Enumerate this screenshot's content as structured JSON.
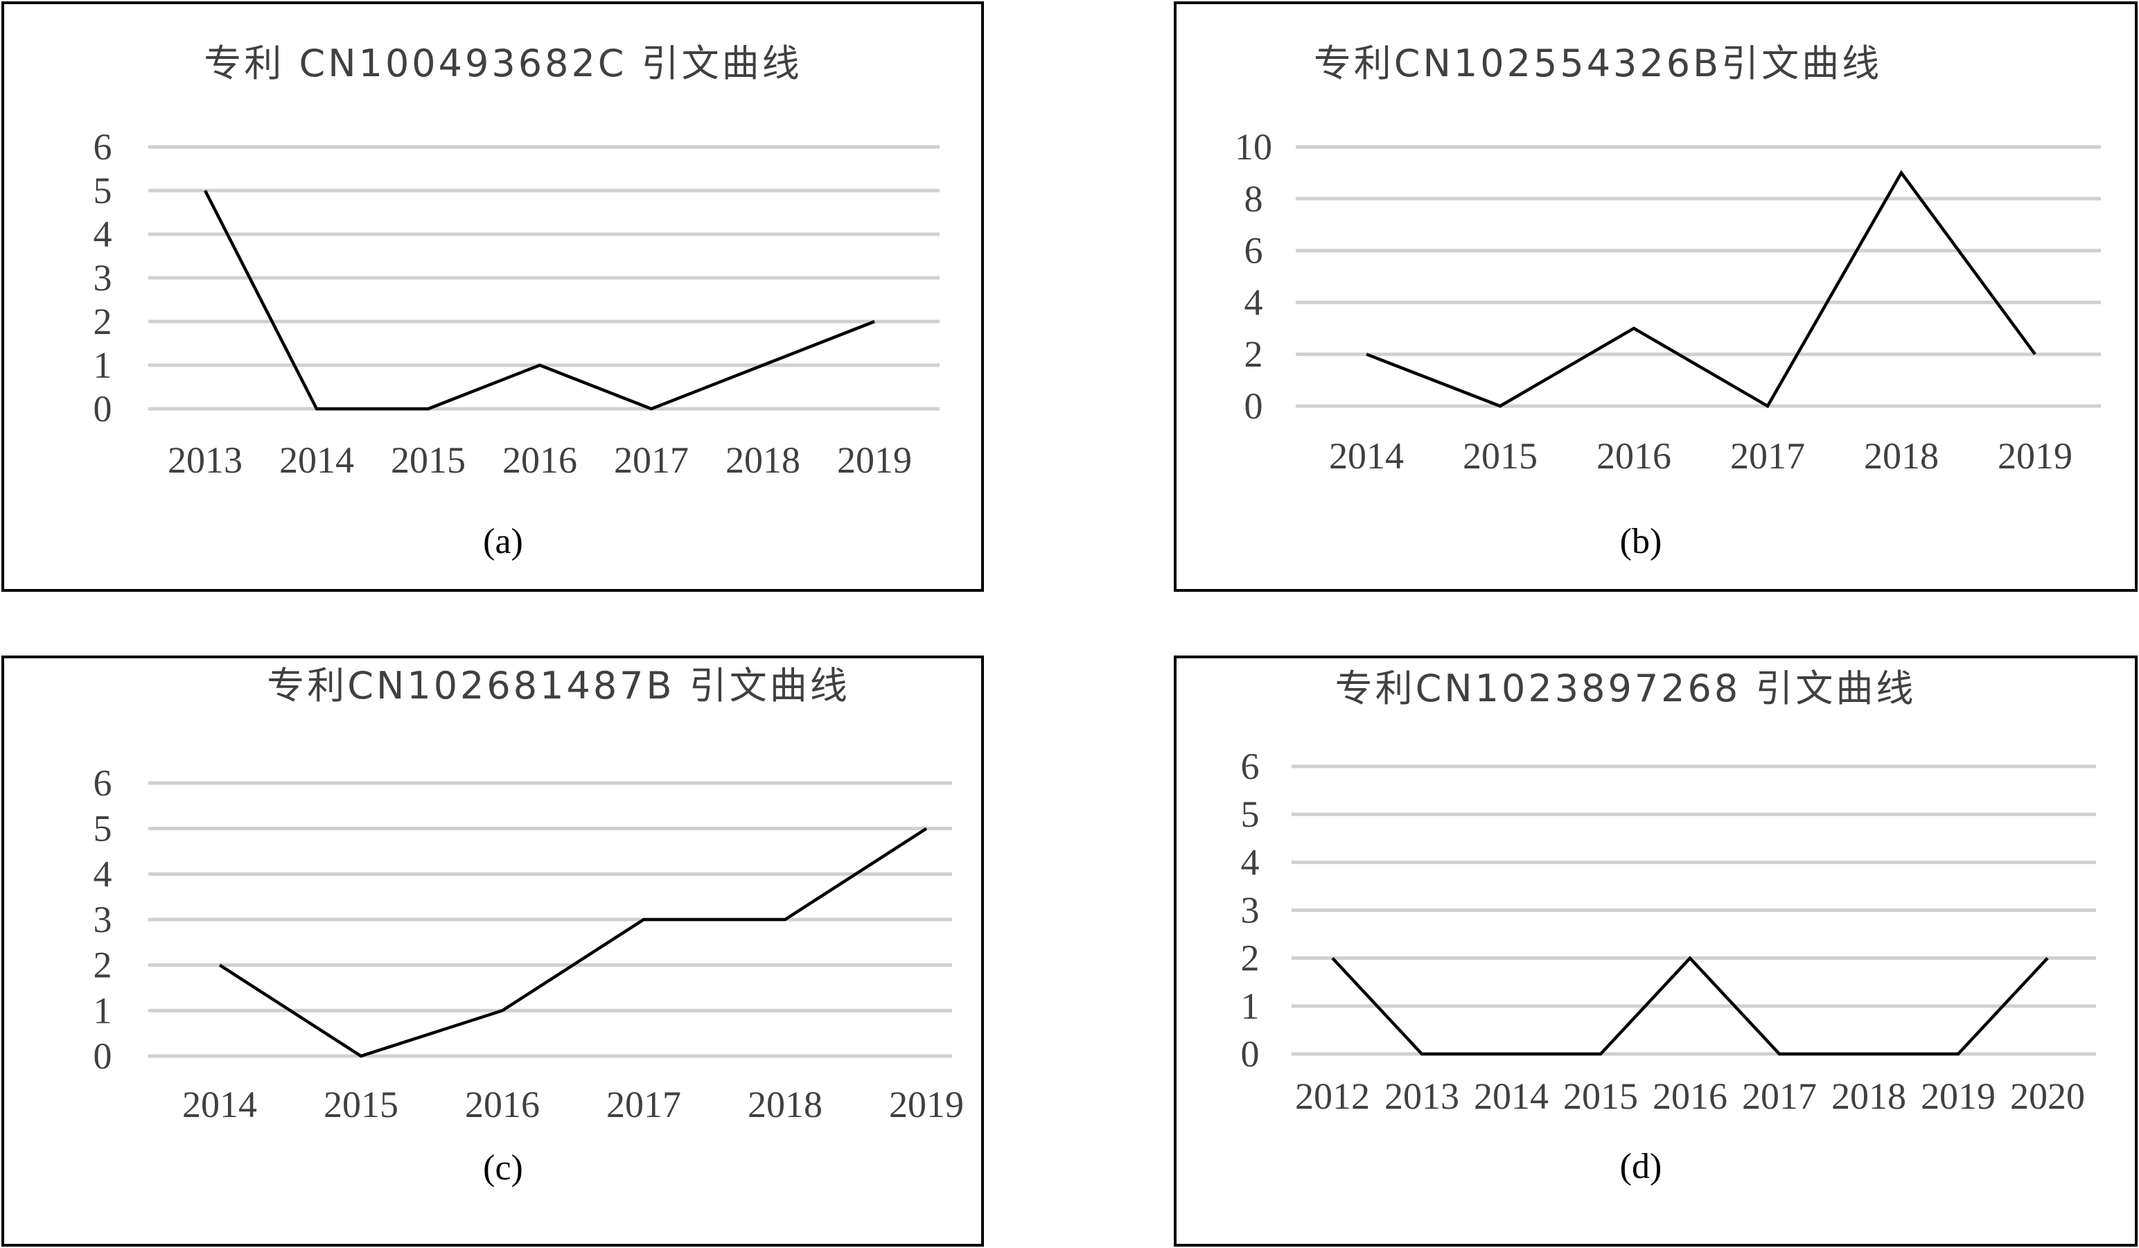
{
  "chart_data": [
    {
      "id": "a",
      "type": "line",
      "title": "专利 CN100493682C 引文曲线",
      "caption": "(a)",
      "categories": [
        "2013",
        "2014",
        "2015",
        "2016",
        "2017",
        "2018",
        "2019"
      ],
      "values": [
        5,
        0,
        0,
        1,
        0,
        1,
        2
      ],
      "yticks": [
        "0",
        "1",
        "2",
        "3",
        "4",
        "5",
        "6"
      ],
      "ylim": [
        0,
        6
      ],
      "grid": true,
      "legend": "none"
    },
    {
      "id": "b",
      "type": "line",
      "title": "专利CN102554326B引文曲线",
      "caption": "(b)",
      "categories": [
        "2014",
        "2015",
        "2016",
        "2017",
        "2018",
        "2019"
      ],
      "values": [
        2,
        0,
        3,
        0,
        9,
        2
      ],
      "yticks": [
        "0",
        "2",
        "4",
        "6",
        "8",
        "10"
      ],
      "ylim": [
        0,
        10
      ],
      "grid": true,
      "legend": "none"
    },
    {
      "id": "c",
      "type": "line",
      "title": "专利CN102681487B 引文曲线",
      "caption": "(c)",
      "categories": [
        "2014",
        "2015",
        "2016",
        "2017",
        "2018",
        "2019"
      ],
      "values": [
        2,
        0,
        1,
        3,
        3,
        5
      ],
      "yticks": [
        "0",
        "1",
        "2",
        "3",
        "4",
        "5",
        "6"
      ],
      "ylim": [
        0,
        6
      ],
      "grid": true,
      "legend": "none"
    },
    {
      "id": "d",
      "type": "line",
      "title": "专利CN1023897268 引文曲线",
      "caption": "(d)",
      "categories": [
        "2012",
        "2013",
        "2014",
        "2015",
        "2016",
        "2017",
        "2018",
        "2019",
        "2020"
      ],
      "values": [
        2,
        0,
        0,
        0,
        2,
        0,
        0,
        0,
        2
      ],
      "yticks": [
        "0",
        "1",
        "2",
        "3",
        "4",
        "5",
        "6"
      ],
      "ylim": [
        0,
        6
      ],
      "grid": true,
      "legend": "none"
    }
  ]
}
